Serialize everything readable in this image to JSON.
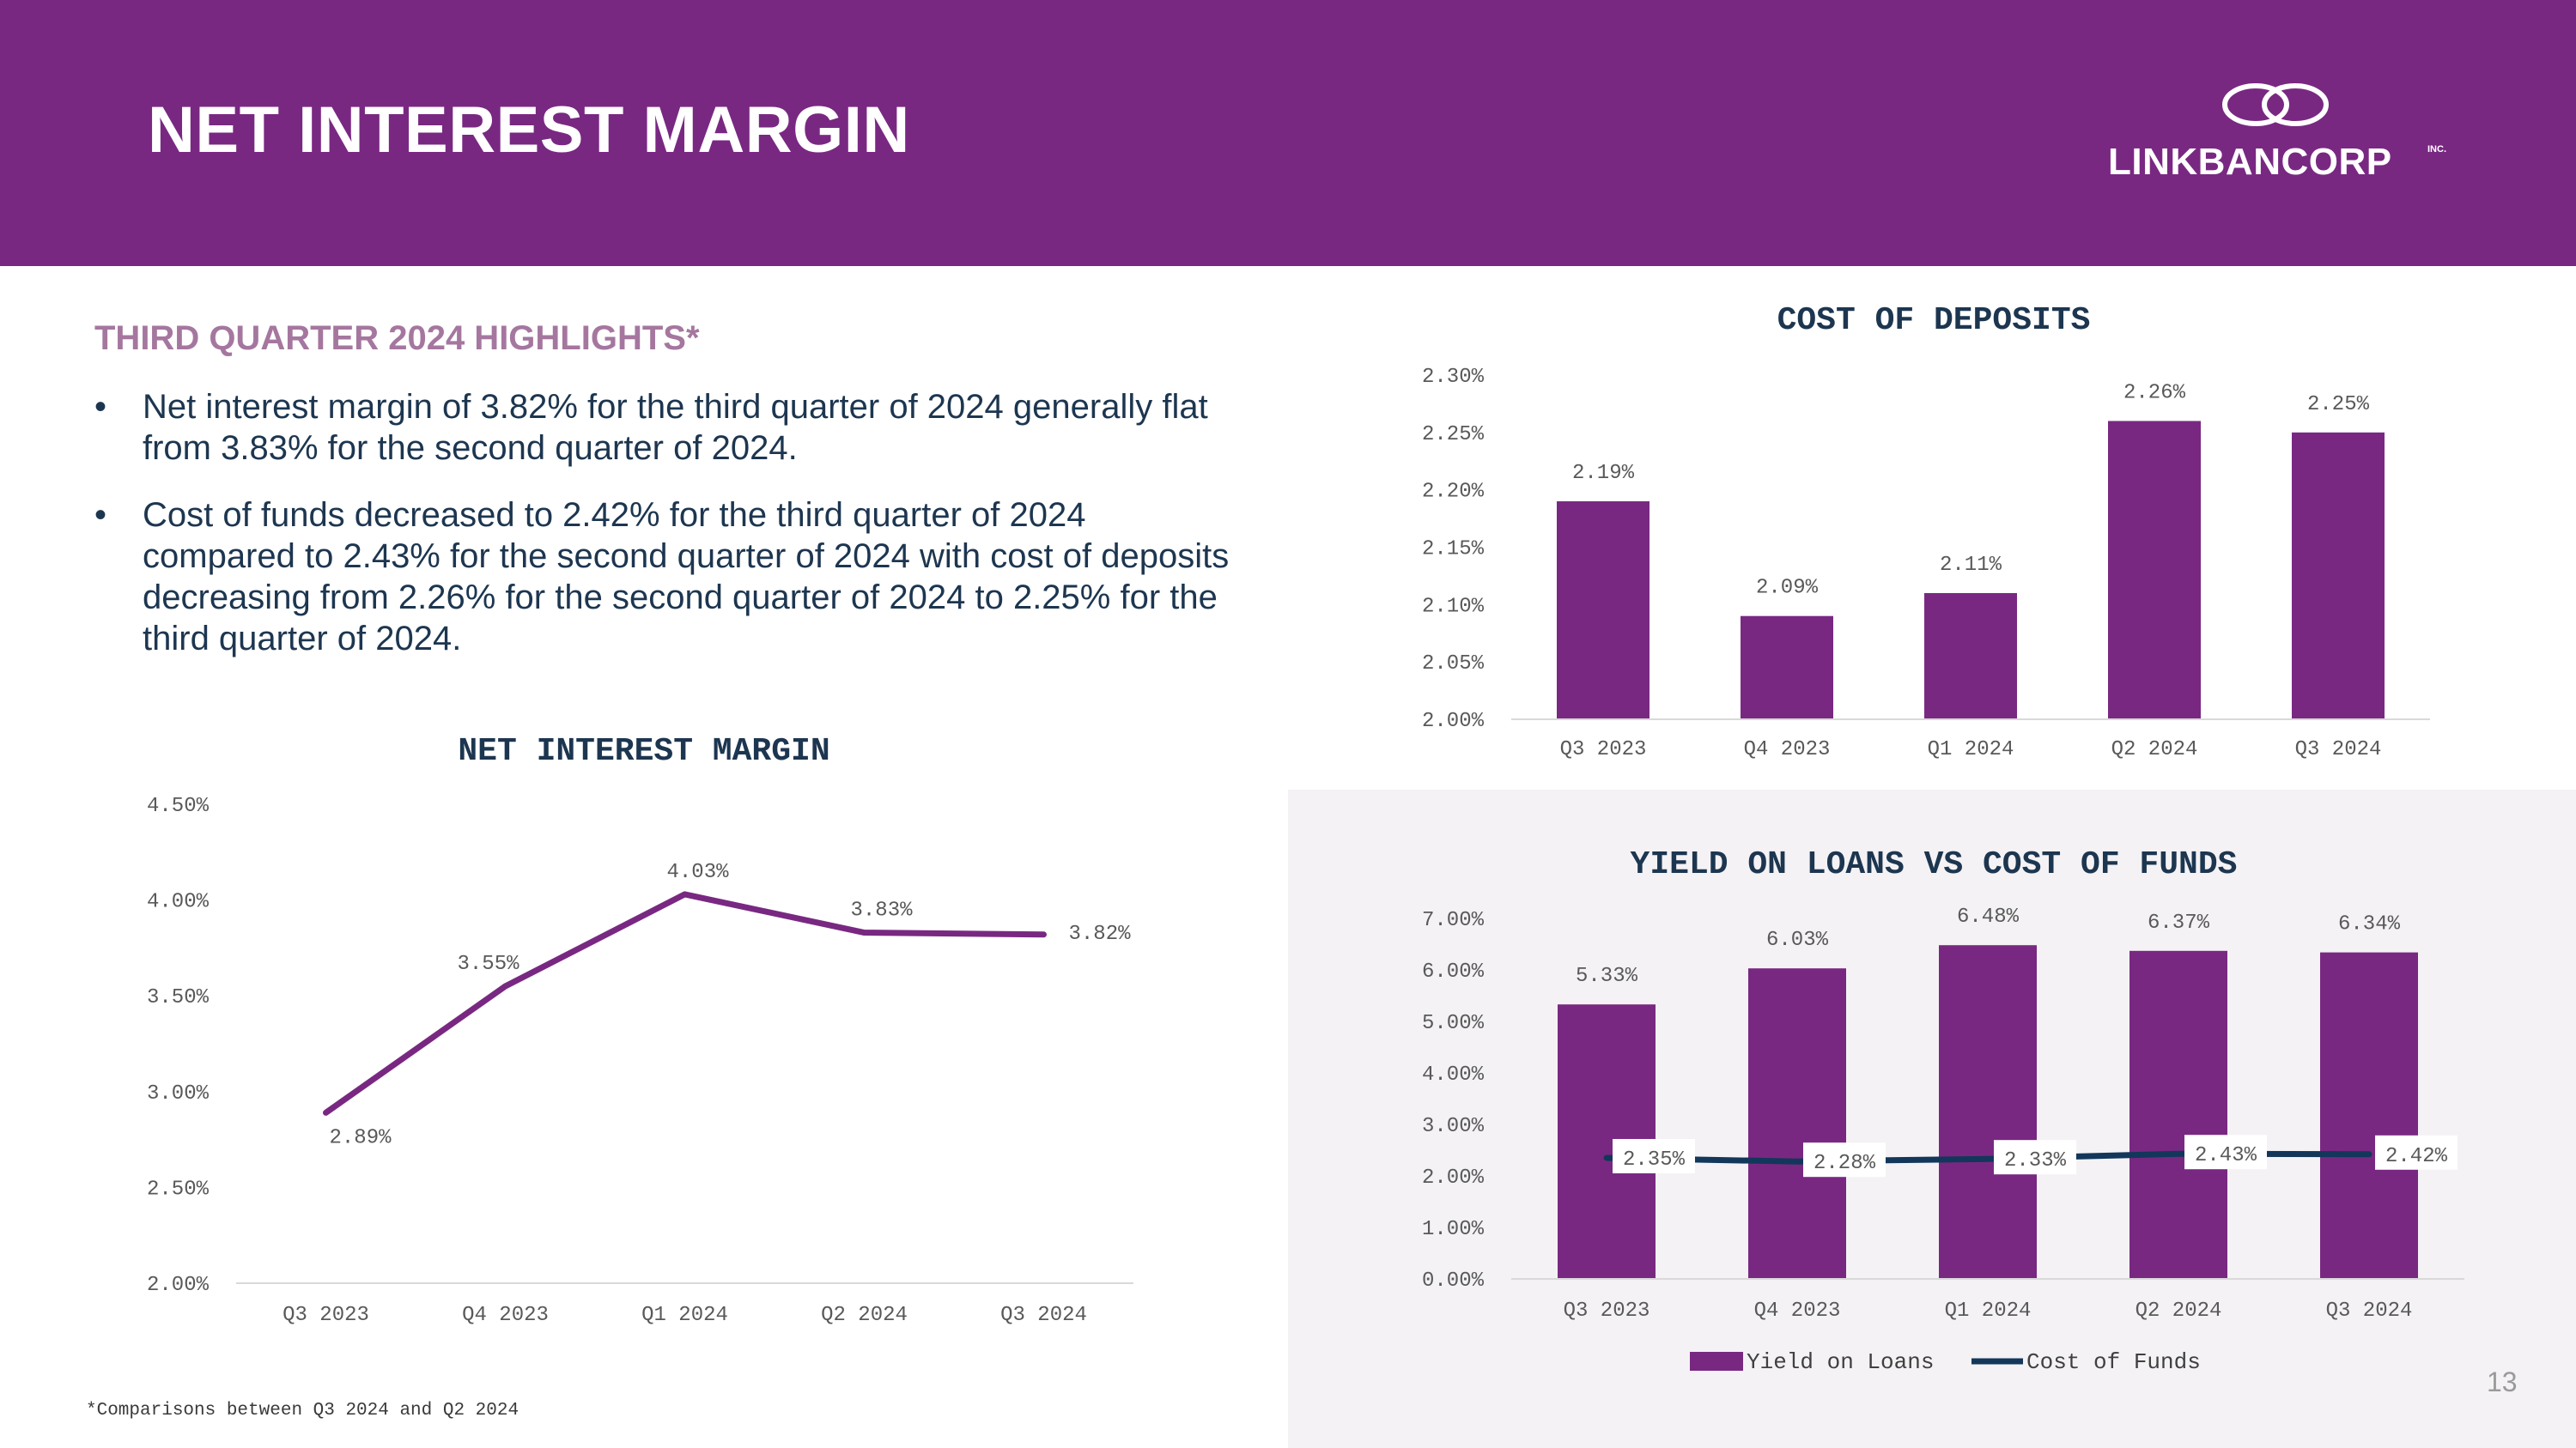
{
  "header": {
    "title": "NET INTEREST MARGIN",
    "logo_text": "LINKBANCORP",
    "logo_suffix": "INC."
  },
  "highlights": {
    "title": "THIRD QUARTER 2024 HIGHLIGHTS*",
    "bullets": [
      "Net interest margin of 3.82% for the third quarter of 2024 generally flat from 3.83% for the second quarter of 2024.",
      "Cost of funds decreased to 2.42% for the third quarter of 2024 compared to 2.43% for the second quarter of 2024 with cost of deposits decreasing from 2.26% for the second quarter of 2024 to 2.25% for the third quarter of 2024."
    ],
    "bullet_glyph": "•"
  },
  "footnote": "*Comparisons between Q3 2024 and Q2 2024",
  "page_number": "13",
  "colors": {
    "brand_purple": "#792882",
    "navy": "#12375a",
    "highlight_title": "#a5779f"
  },
  "chart_data": [
    {
      "id": "nim",
      "type": "line",
      "title": "NET INTEREST MARGIN",
      "categories": [
        "Q3 2023",
        "Q4 2023",
        "Q1 2024",
        "Q2 2024",
        "Q3 2024"
      ],
      "series": [
        {
          "values": [
            2.89,
            3.55,
            4.03,
            3.83,
            3.82
          ],
          "color": "#792882"
        }
      ],
      "data_labels": [
        "2.89%",
        "3.55%",
        "4.03%",
        "3.83%",
        "3.82%"
      ],
      "ylim": [
        2.0,
        4.5
      ],
      "yticks": [
        "2.00%",
        "2.50%",
        "3.00%",
        "3.50%",
        "4.00%",
        "4.50%"
      ],
      "grid": false
    },
    {
      "id": "deposits",
      "type": "bar",
      "title": "COST OF DEPOSITS",
      "categories": [
        "Q3 2023",
        "Q4 2023",
        "Q1 2024",
        "Q2 2024",
        "Q3 2024"
      ],
      "values": [
        2.19,
        2.09,
        2.11,
        2.26,
        2.25
      ],
      "data_labels": [
        "2.19%",
        "2.09%",
        "2.11%",
        "2.26%",
        "2.25%"
      ],
      "ylim": [
        2.0,
        2.3
      ],
      "yticks": [
        "2.00%",
        "2.05%",
        "2.10%",
        "2.15%",
        "2.20%",
        "2.25%",
        "2.30%"
      ],
      "color": "#792882",
      "grid": false
    },
    {
      "id": "yield",
      "type": "bar",
      "title": "YIELD ON LOANS VS COST OF FUNDS",
      "categories": [
        "Q3 2023",
        "Q4 2023",
        "Q1 2024",
        "Q2 2024",
        "Q3 2024"
      ],
      "series": [
        {
          "name": "Yield on Loans",
          "type": "bar",
          "values": [
            5.33,
            6.03,
            6.48,
            6.37,
            6.34
          ],
          "labels": [
            "5.33%",
            "6.03%",
            "6.48%",
            "6.37%",
            "6.34%"
          ],
          "color": "#792882"
        },
        {
          "name": "Cost of Funds",
          "type": "line",
          "values": [
            2.35,
            2.28,
            2.33,
            2.43,
            2.42
          ],
          "labels": [
            "2.35%",
            "2.28%",
            "2.33%",
            "2.43%",
            "2.42%"
          ],
          "color": "#12375a"
        }
      ],
      "ylim": [
        0,
        7
      ],
      "yticks": [
        "0.00%",
        "1.00%",
        "2.00%",
        "3.00%",
        "4.00%",
        "5.00%",
        "6.00%",
        "7.00%"
      ],
      "legend": "bottom",
      "grid": false
    }
  ]
}
